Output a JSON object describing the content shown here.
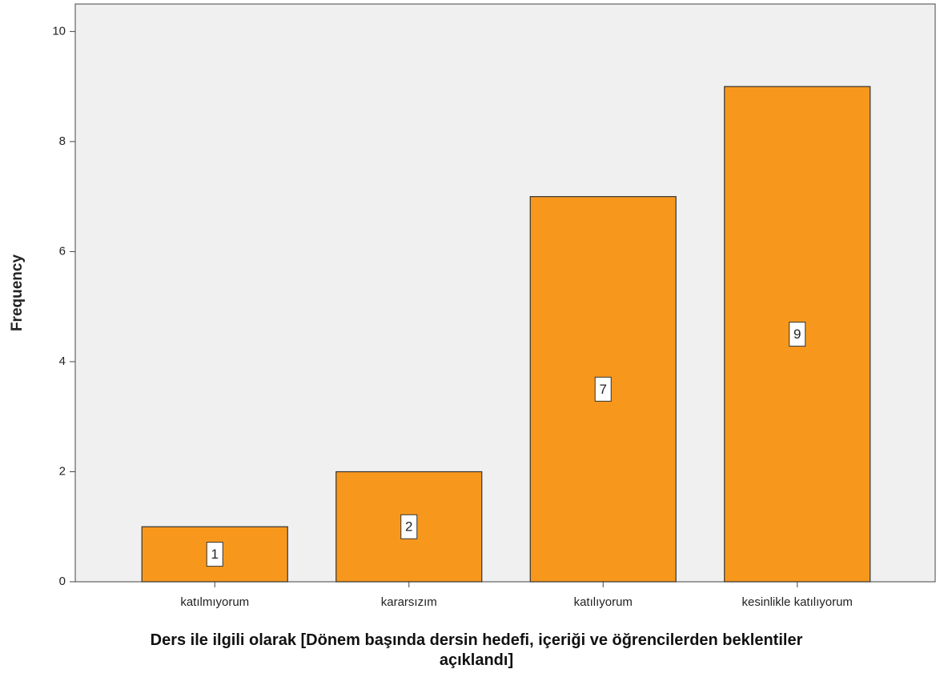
{
  "chart_data": {
    "type": "bar",
    "xlabel": "Ders ile ilgili olarak [Dönem başında dersin hedefi, içeriği ve öğrencilerden beklentiler açıklandı]",
    "ylabel": "Frequency",
    "categories": [
      "katılmıyorum",
      "kararsızım",
      "katılıyorum",
      "kesinlikle katılıyorum"
    ],
    "values": [
      1,
      2,
      7,
      9
    ],
    "color": "#f7981d",
    "ylim": [
      0,
      10.5
    ],
    "yticks": [
      0,
      2,
      4,
      6,
      8,
      10
    ],
    "grid": false
  }
}
